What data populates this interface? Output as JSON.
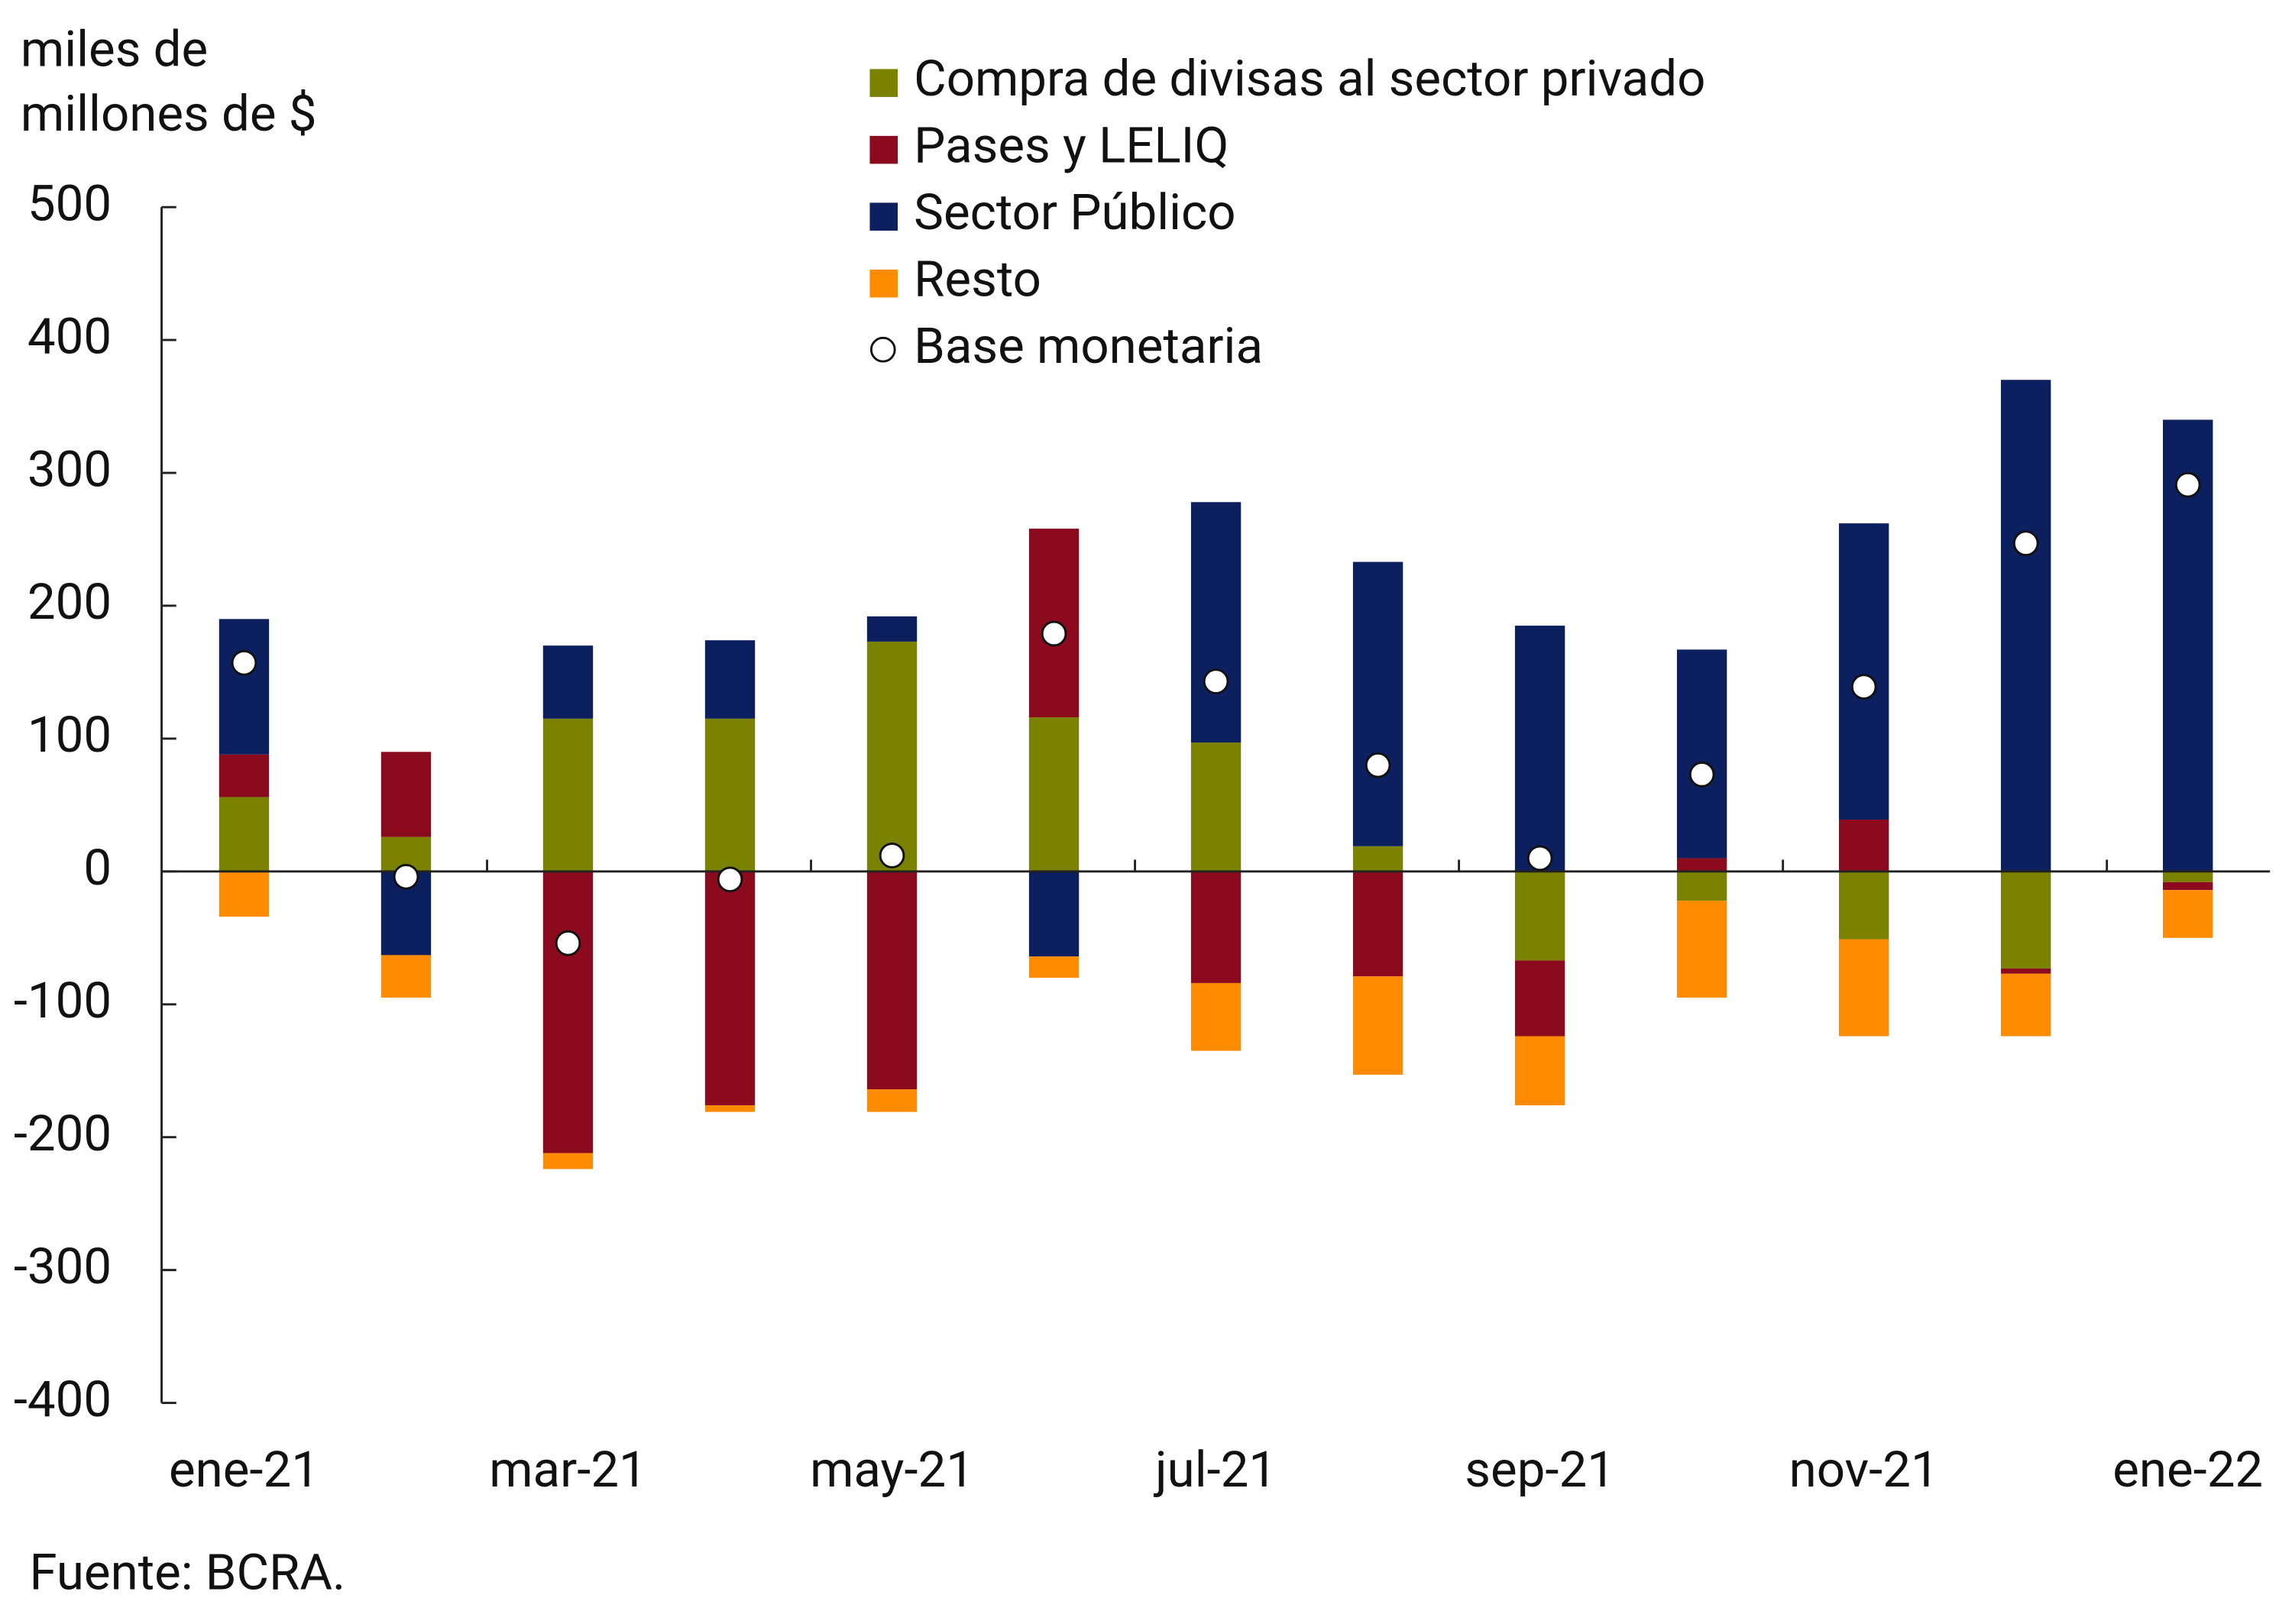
{
  "chart_data": {
    "type": "bar",
    "stacked": true,
    "ylabel": [
      "miles de",
      "millones de $"
    ],
    "source": "Fuente: BCRA.",
    "categories": [
      "ene-21",
      null,
      "mar-21",
      null,
      "may-21",
      null,
      "jul-21",
      null,
      "sep-21",
      null,
      "nov-21",
      null,
      "ene-22"
    ],
    "ylim": [
      -400,
      500
    ],
    "yticks": [
      -400,
      -300,
      -200,
      -100,
      0,
      100,
      200,
      300,
      400,
      500
    ],
    "series": [
      {
        "name": "Compra de divisas al sector privado",
        "color": "#7a8200",
        "values": [
          56,
          26,
          115,
          115,
          173,
          116,
          97,
          19,
          -67,
          -22,
          -51,
          -73,
          -8
        ]
      },
      {
        "name": "Pases y LELIQ",
        "color": "#8b0a1e",
        "values": [
          32,
          64,
          -212,
          -176,
          -164,
          142,
          -84,
          -79,
          -57,
          10,
          39,
          -4,
          -6
        ]
      },
      {
        "name": "Sector Público",
        "color": "#0c1f5e",
        "values": [
          102,
          -63,
          55,
          59,
          19,
          -64,
          181,
          214,
          185,
          157,
          223,
          370,
          340
        ]
      },
      {
        "name": "Resto",
        "color": "#ff8c00",
        "values": [
          -34,
          -32,
          -12,
          -5,
          -17,
          -16,
          -51,
          -74,
          -52,
          -73,
          -73,
          -47,
          -36
        ]
      },
      {
        "name": "Base monetaria",
        "type": "scatter",
        "color": "#ffffff",
        "values": [
          157,
          -4,
          -54,
          -6,
          12,
          179,
          143,
          80,
          10,
          73,
          139,
          247,
          291
        ]
      }
    ]
  }
}
